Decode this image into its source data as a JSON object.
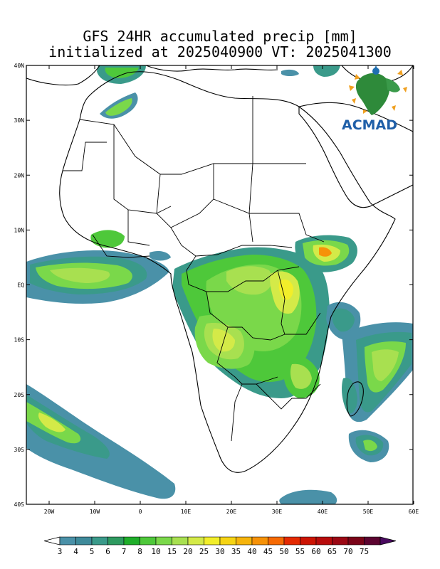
{
  "title": {
    "line1": "GFS 24HR accumulated precip [mm]",
    "line2": "initialized at 2025040900 VT: 2025041300"
  },
  "logo": {
    "text": "ACMAD",
    "icon": "acmad-africa-logo"
  },
  "axes": {
    "lat_ticks": [
      "40N",
      "30N",
      "20N",
      "10N",
      "EQ",
      "10S",
      "20S",
      "30S",
      "40S"
    ],
    "lon_ticks": [
      "20W",
      "10W",
      "0",
      "10E",
      "20E",
      "30E",
      "40E",
      "50E",
      "60E"
    ]
  },
  "colorbar": {
    "levels": [
      "3",
      "4",
      "5",
      "6",
      "7",
      "8",
      "10",
      "15",
      "20",
      "25",
      "30",
      "35",
      "40",
      "45",
      "50",
      "55",
      "60",
      "65",
      "70",
      "75"
    ],
    "colors": [
      "#4a91a8",
      "#3e8a9a",
      "#3a9a8a",
      "#2e9a60",
      "#1fae2a",
      "#4ec83a",
      "#7ad84a",
      "#a8e050",
      "#d4ea48",
      "#f2ee2a",
      "#f6d414",
      "#f6b40c",
      "#f69208",
      "#f66a04",
      "#e42a02",
      "#cc1404",
      "#b80c0c",
      "#9c0814",
      "#7a0418",
      "#5c0430",
      "#4a0a60"
    ]
  },
  "colors": {
    "coast": "#000000",
    "land_background": "#ffffff"
  }
}
